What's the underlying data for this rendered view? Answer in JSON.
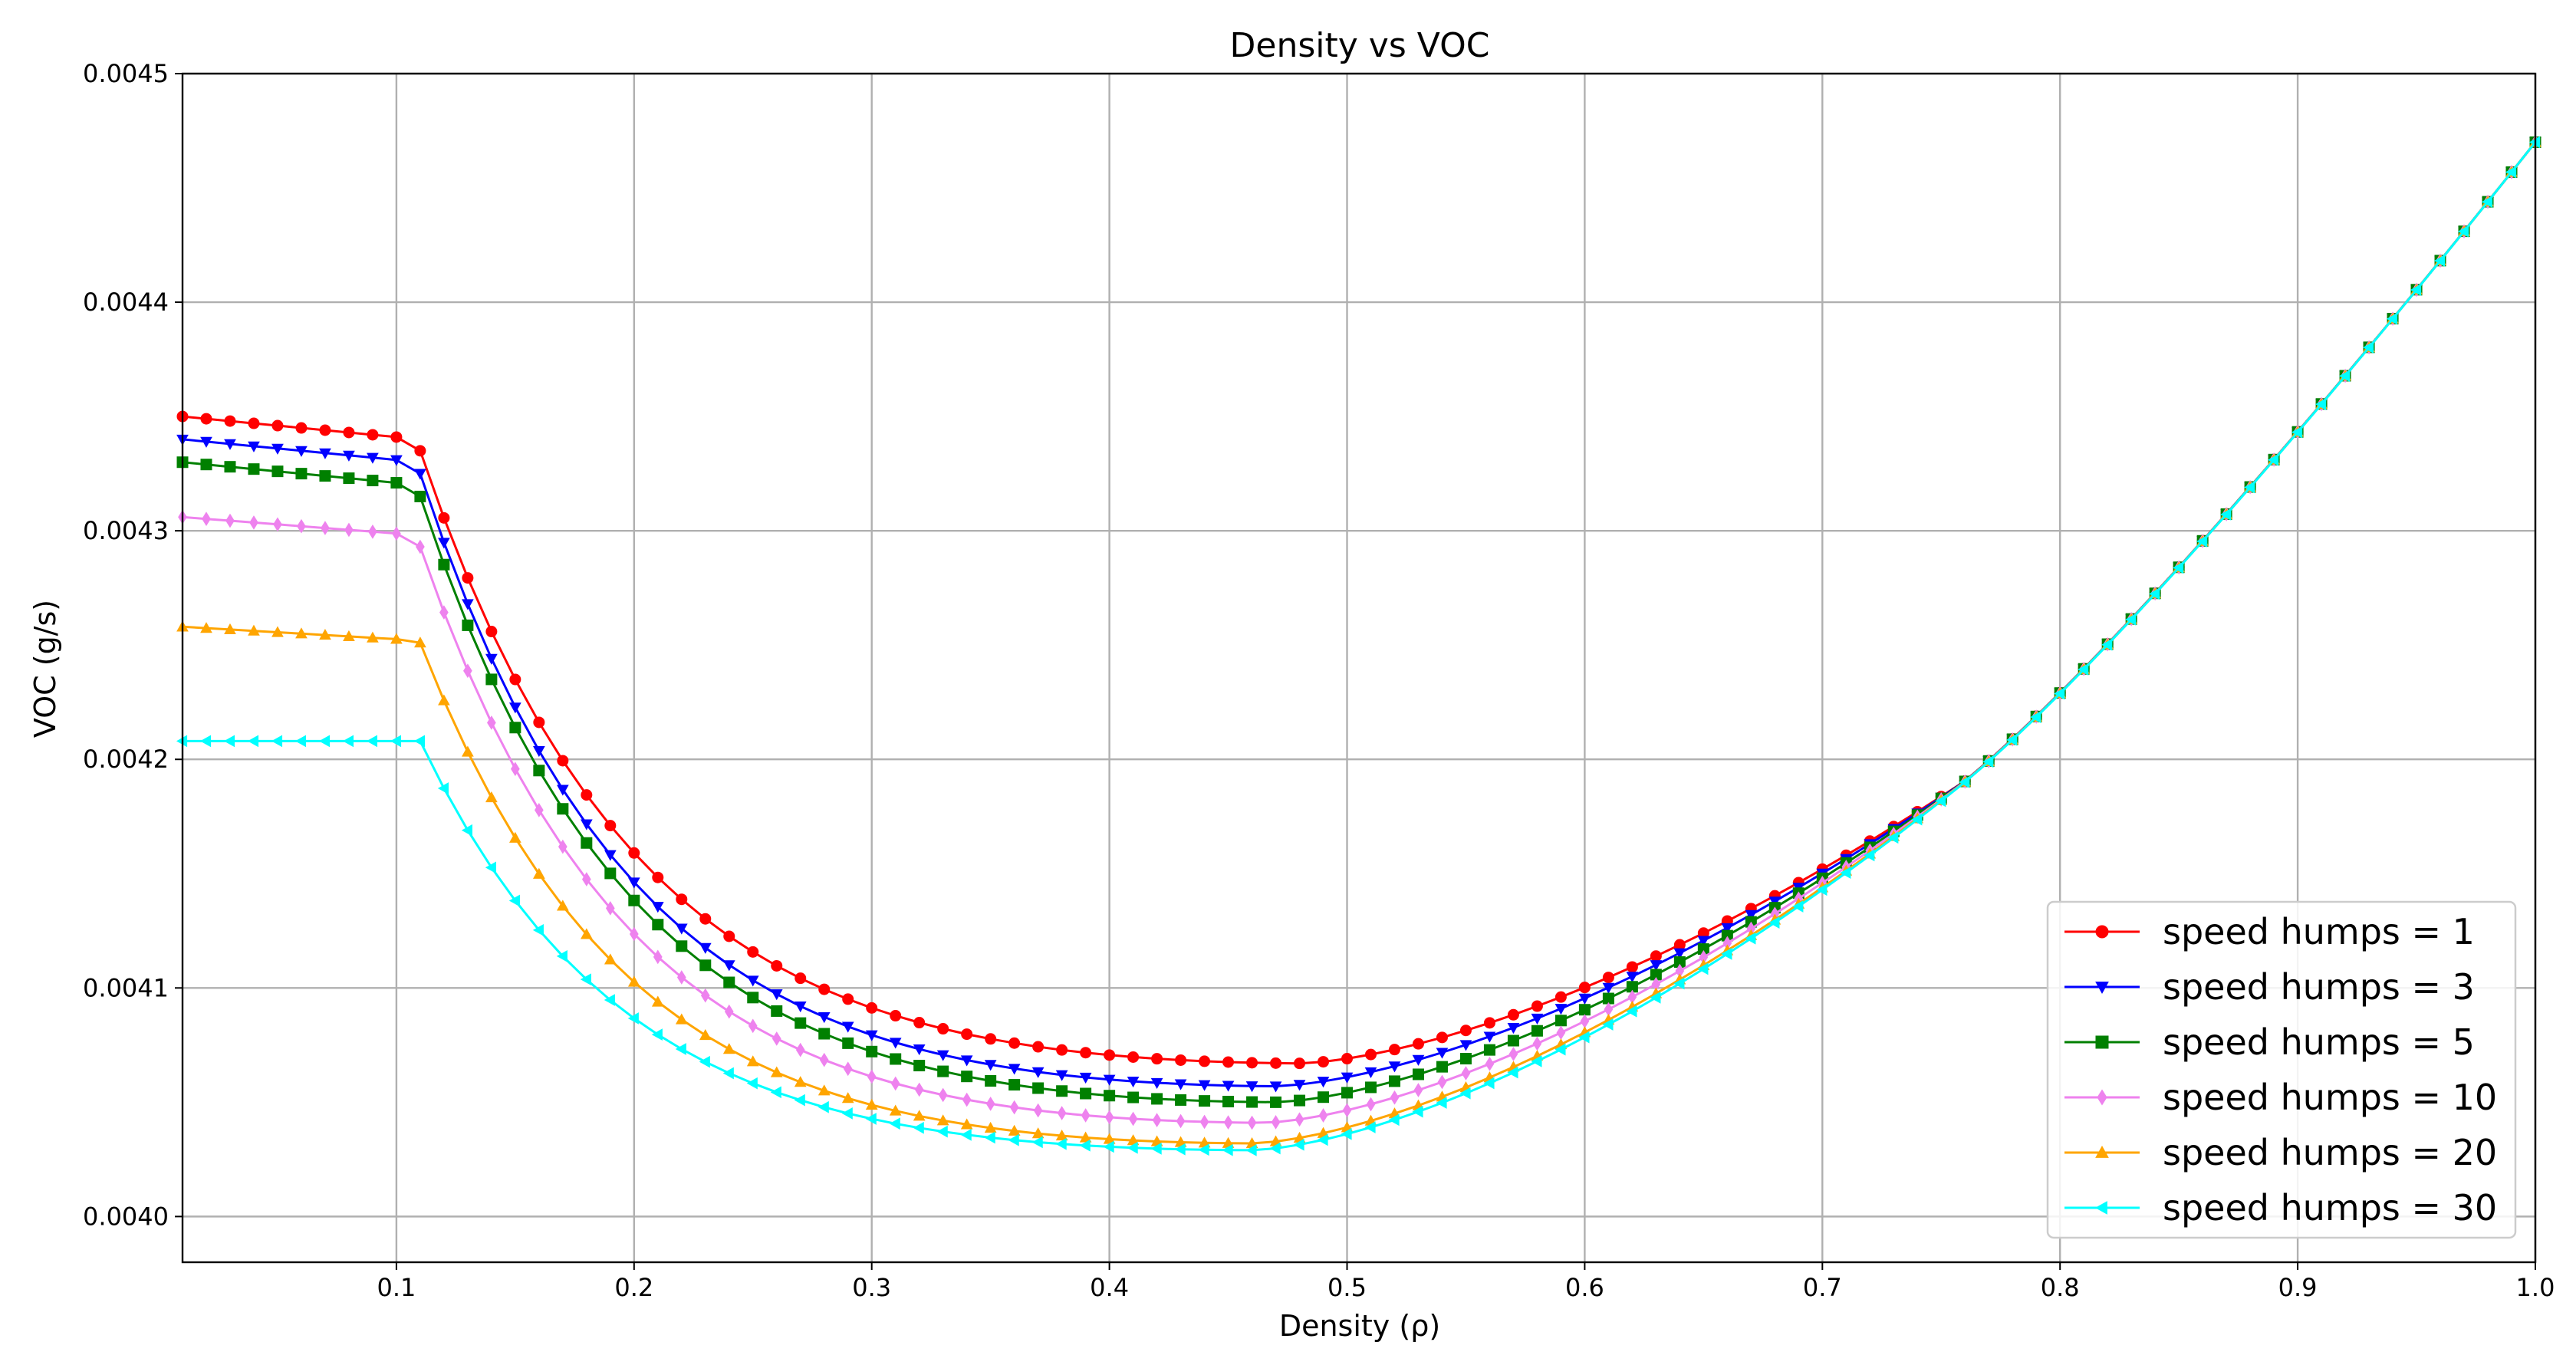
{
  "chart_data": {
    "type": "line",
    "title": "Density vs VOC",
    "xlabel": "Density (ρ)",
    "ylabel": "VOC (g/s)",
    "xlim": [
      0.01,
      1.0
    ],
    "ylim": [
      0.00398,
      0.0045
    ],
    "x_ticks": [
      0.1,
      0.2,
      0.3,
      0.4,
      0.5,
      0.6,
      0.7,
      0.8,
      0.9,
      1.0
    ],
    "x_tick_labels": [
      "0.1",
      "0.2",
      "0.3",
      "0.4",
      "0.5",
      "0.6",
      "0.7",
      "0.8",
      "0.9",
      "1.0"
    ],
    "y_ticks": [
      0.004,
      0.0041,
      0.0042,
      0.0043,
      0.0044,
      0.0045
    ],
    "y_tick_labels": [
      "0.0040",
      "0.0041",
      "0.0042",
      "0.0043",
      "0.0044",
      "0.0045"
    ],
    "grid": true,
    "legend_position": "lower-right",
    "x_sampling": {
      "start": 0.01,
      "step": 0.01,
      "count": 100
    },
    "series": [
      {
        "name": "speed humps = 1",
        "label": "speed humps = 1",
        "color": "#ff0000",
        "marker": "circle",
        "plateau": 0.00435,
        "plateau_slope": -1e-06,
        "knee": 0.11,
        "drop_peak": 0.004335,
        "min_x": 0.48,
        "min_y": 0.004067,
        "tail_slope": 1.6e-07
      },
      {
        "name": "speed humps = 3",
        "label": "speed humps = 3",
        "color": "#0000ff",
        "marker": "triangle-down",
        "plateau": 0.00434,
        "plateau_slope": -1e-06,
        "knee": 0.11,
        "drop_peak": 0.004325,
        "min_x": 0.47,
        "min_y": 0.004057,
        "tail_slope": 1.8e-07
      },
      {
        "name": "speed humps = 5",
        "label": "speed humps = 5",
        "color": "#008000",
        "marker": "square",
        "plateau": 0.00433,
        "plateau_slope": -1e-06,
        "knee": 0.11,
        "drop_peak": 0.004315,
        "min_x": 0.47,
        "min_y": 0.00405,
        "tail_slope": 2e-07
      },
      {
        "name": "speed humps = 10",
        "label": "speed humps = 10",
        "color": "#ee82ee",
        "marker": "diamond",
        "plateau": 0.004306,
        "plateau_slope": -8e-07,
        "knee": 0.11,
        "drop_peak": 0.004293,
        "min_x": 0.465,
        "min_y": 0.004041,
        "tail_slope": 2.2e-07
      },
      {
        "name": "speed humps = 20",
        "label": "speed humps = 20",
        "color": "#ffa500",
        "marker": "triangle-up",
        "plateau": 0.004258,
        "plateau_slope": -6e-07,
        "knee": 0.11,
        "drop_peak": 0.004251,
        "min_x": 0.46,
        "min_y": 0.004032,
        "tail_slope": 2.5e-07
      },
      {
        "name": "speed humps = 30",
        "label": "speed humps = 30",
        "color": "#00ffff",
        "marker": "triangle-left",
        "plateau": 0.004208,
        "plateau_slope": 0.0,
        "knee": 0.11,
        "drop_peak": 0.004208,
        "min_x": 0.46,
        "min_y": 0.004029,
        "tail_slope": 2.8e-07
      }
    ],
    "endpoint": {
      "x": 1.0,
      "y": 0.00447
    }
  }
}
